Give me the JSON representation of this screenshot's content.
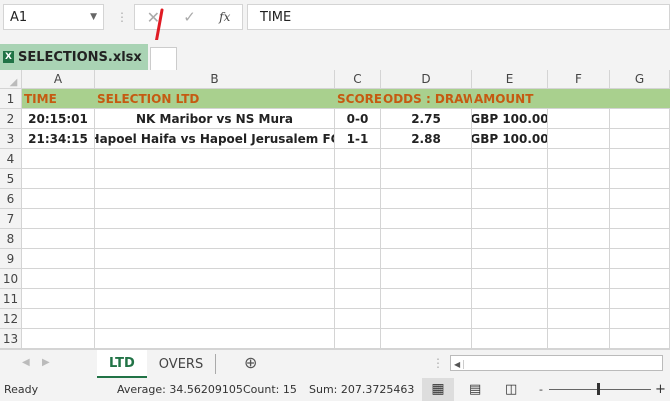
{
  "formula_bar": {
    "name_box": "A1",
    "formula": "TIME",
    "fx_label": "fx"
  },
  "file_tab": {
    "name": "SELECTIONS.xlsx"
  },
  "columns": [
    "A",
    "B",
    "C",
    "D",
    "E",
    "F",
    "G"
  ],
  "rows": [
    "1",
    "2",
    "3",
    "4",
    "5",
    "6",
    "7",
    "8",
    "9",
    "10",
    "11",
    "12",
    "13"
  ],
  "header_row": [
    "TIME",
    "SELECTION LTD",
    "SCORE",
    "ODDS : DRAW",
    "AMOUNT",
    "",
    ""
  ],
  "data_rows": [
    [
      "20:15:01",
      "NK Maribor vs NS Mura",
      "0-0",
      "2.75",
      "GBP 100.00",
      "",
      ""
    ],
    [
      "21:34:15",
      "Hapoel Haifa vs Hapoel Jerusalem FC",
      "1-1",
      "2.88",
      "GBP 100.00",
      "",
      ""
    ]
  ],
  "sheets": [
    {
      "label": "LTD",
      "active": true
    },
    {
      "label": "OVERS",
      "active": false
    }
  ],
  "status": {
    "ready": "Ready",
    "average": "Average: 34.56209105",
    "count": "Count: 15",
    "sum": "Sum: 207.3725463"
  },
  "colors": {
    "header_fill": "#a9d08e",
    "header_text": "#c55a11",
    "tab_green": "#a9d3b4",
    "active_sheet": "#217346"
  }
}
